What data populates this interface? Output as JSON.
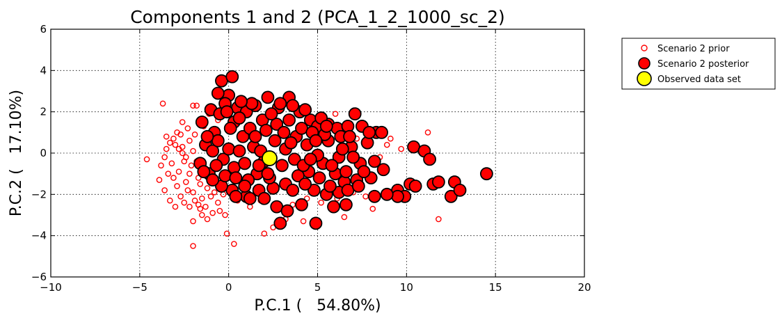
{
  "chart_data": {
    "type": "scatter",
    "title": "Components 1 and 2 (PCA_1_2_1000_sc_2)",
    "xlabel": "P.C.1 (   54.80%)",
    "ylabel": "P.C.2 (   17.10%)",
    "xlim": [
      -10,
      20
    ],
    "ylim": [
      -6,
      6
    ],
    "xticks": [
      -10,
      -5,
      0,
      5,
      10,
      15,
      20
    ],
    "yticks": [
      -6,
      -4,
      -2,
      0,
      2,
      4,
      6
    ],
    "xtick_labels": [
      "−10",
      "−5",
      "0",
      "5",
      "10",
      "15",
      "20"
    ],
    "ytick_labels": [
      "−6",
      "−4",
      "−2",
      "0",
      "2",
      "4",
      "6"
    ],
    "grid": true,
    "legend_position": "outside-top-right",
    "series": [
      {
        "name": "Scenario 2 prior",
        "marker": "hollow-circle",
        "color": "#ff0000",
        "points": [
          [
            -3.7,
            2.4
          ],
          [
            -2.0,
            2.3
          ],
          [
            -1.8,
            2.3
          ],
          [
            -2.6,
            1.5
          ],
          [
            -2.9,
            1.0
          ],
          [
            -3.5,
            0.8
          ],
          [
            -2.3,
            1.2
          ],
          [
            -4.6,
            -0.3
          ],
          [
            -3.9,
            -1.3
          ],
          [
            -3.6,
            -1.8
          ],
          [
            -3.3,
            -2.3
          ],
          [
            -3.0,
            -2.6
          ],
          [
            -2.5,
            -2.4
          ],
          [
            -1.6,
            -2.7
          ],
          [
            -1.3,
            -2.6
          ],
          [
            -1.5,
            -3.0
          ],
          [
            -0.9,
            -2.9
          ],
          [
            -0.5,
            -2.8
          ],
          [
            -0.2,
            -3.0
          ],
          [
            -1.2,
            -3.2
          ],
          [
            -2.0,
            -3.3
          ],
          [
            -2.0,
            -4.5
          ],
          [
            -0.1,
            -3.9
          ],
          [
            0.3,
            -4.4
          ],
          [
            2.0,
            -3.9
          ],
          [
            2.5,
            -3.6
          ],
          [
            3.2,
            -3.2
          ],
          [
            4.2,
            -3.3
          ],
          [
            6.5,
            -3.1
          ],
          [
            8.1,
            -2.7
          ],
          [
            6.0,
            1.9
          ],
          [
            11.2,
            1.0
          ],
          [
            9.1,
            0.7
          ],
          [
            9.7,
            0.2
          ],
          [
            11.8,
            -3.2
          ],
          [
            8.3,
            0.9
          ],
          [
            7.7,
            -2.1
          ],
          [
            -3.5,
            0.2
          ],
          [
            -3.2,
            -0.5
          ],
          [
            -3.0,
            0.4
          ],
          [
            -2.8,
            -0.9
          ],
          [
            -2.6,
            0.0
          ],
          [
            -2.4,
            -1.4
          ],
          [
            -2.2,
            0.6
          ],
          [
            -2.1,
            -0.6
          ],
          [
            -2.0,
            -1.9
          ],
          [
            -1.9,
            0.9
          ],
          [
            -1.7,
            -1.2
          ],
          [
            -1.5,
            -2.2
          ],
          [
            -1.4,
            0.3
          ],
          [
            -1.2,
            -1.7
          ],
          [
            -1.0,
            -2.1
          ],
          [
            -0.8,
            -1.9
          ],
          [
            -0.6,
            -2.4
          ],
          [
            -0.3,
            -2.0
          ],
          [
            -3.4,
            -1.0
          ],
          [
            -3.1,
            0.7
          ],
          [
            -2.9,
            -1.6
          ],
          [
            -2.7,
            0.9
          ],
          [
            -2.5,
            -0.4
          ],
          [
            -2.3,
            -1.8
          ],
          [
            -2.6,
            0.3
          ],
          [
            -2.4,
            -0.2
          ],
          [
            -2.2,
            -1.0
          ],
          [
            -2.0,
            0.1
          ],
          [
            -1.8,
            -0.4
          ],
          [
            -1.6,
            -1.5
          ],
          [
            -3.8,
            -0.6
          ],
          [
            -3.6,
            -0.2
          ],
          [
            -3.3,
            0.5
          ],
          [
            -3.1,
            -1.2
          ],
          [
            -2.8,
            0.2
          ],
          [
            -2.7,
            -2.1
          ],
          [
            -2.2,
            -2.6
          ],
          [
            -1.9,
            -2.3
          ],
          [
            -1.7,
            -2.5
          ],
          [
            0.5,
            -2.3
          ],
          [
            1.2,
            -2.6
          ],
          [
            1.8,
            -2.3
          ],
          [
            3.6,
            -2.5
          ],
          [
            4.4,
            -2.2
          ],
          [
            5.2,
            -2.4
          ],
          [
            6.1,
            -2.2
          ],
          [
            7.0,
            -1.9
          ],
          [
            7.2,
            0.7
          ],
          [
            8.5,
            -0.2
          ],
          [
            8.9,
            0.4
          ],
          [
            -0.6,
            1.6
          ],
          [
            -1.1,
            1.9
          ],
          [
            -0.8,
            2.1
          ],
          [
            -1.4,
            1.3
          ]
        ]
      },
      {
        "name": "Scenario 2 posterior",
        "marker": "filled-circle",
        "color": "#ff0000",
        "edgecolor": "#000000",
        "points": [
          [
            -0.4,
            3.5
          ],
          [
            0.2,
            3.7
          ],
          [
            0.0,
            2.8
          ],
          [
            -0.6,
            2.9
          ],
          [
            -0.2,
            2.4
          ],
          [
            0.5,
            2.2
          ],
          [
            1.0,
            2.0
          ],
          [
            1.5,
            2.3
          ],
          [
            2.2,
            2.7
          ],
          [
            3.4,
            2.7
          ],
          [
            2.8,
            2.2
          ],
          [
            4.0,
            2.0
          ],
          [
            4.6,
            1.6
          ],
          [
            5.0,
            1.3
          ],
          [
            5.6,
            1.4
          ],
          [
            6.1,
            1.2
          ],
          [
            6.7,
            1.3
          ],
          [
            7.1,
            1.9
          ],
          [
            7.5,
            1.3
          ],
          [
            8.3,
            1.0
          ],
          [
            7.8,
            0.5
          ],
          [
            6.9,
            0.3
          ],
          [
            7.4,
            -0.5
          ],
          [
            8.2,
            -0.4
          ],
          [
            8.7,
            -0.8
          ],
          [
            8.0,
            -1.2
          ],
          [
            7.2,
            -1.3
          ],
          [
            6.5,
            -1.4
          ],
          [
            6.0,
            -1.0
          ],
          [
            5.3,
            -0.5
          ],
          [
            4.5,
            -0.9
          ],
          [
            3.9,
            -1.1
          ],
          [
            3.2,
            -1.5
          ],
          [
            2.5,
            -1.7
          ],
          [
            1.7,
            -1.8
          ],
          [
            1.0,
            -2.1
          ],
          [
            0.2,
            -1.8
          ],
          [
            -0.4,
            -1.6
          ],
          [
            -1.1,
            -1.0
          ],
          [
            -1.6,
            -0.5
          ],
          [
            -1.3,
            0.4
          ],
          [
            -0.8,
            1.0
          ],
          [
            -1.5,
            1.5
          ],
          [
            -1.0,
            2.1
          ],
          [
            0.3,
            1.5
          ],
          [
            0.8,
            0.8
          ],
          [
            1.4,
            0.3
          ],
          [
            2.0,
            -0.4
          ],
          [
            2.6,
            0.6
          ],
          [
            3.2,
            0.2
          ],
          [
            3.8,
            0.8
          ],
          [
            4.4,
            0.4
          ],
          [
            5.0,
            -0.1
          ],
          [
            5.6,
            0.6
          ],
          [
            6.2,
            -0.2
          ],
          [
            4.8,
            -1.8
          ],
          [
            5.5,
            -2.0
          ],
          [
            6.2,
            -1.9
          ],
          [
            6.7,
            -1.8
          ],
          [
            7.3,
            -1.6
          ],
          [
            8.2,
            -2.1
          ],
          [
            9.5,
            -1.8
          ],
          [
            9.9,
            -2.1
          ],
          [
            10.2,
            -1.5
          ],
          [
            10.5,
            -1.6
          ],
          [
            11.5,
            -1.5
          ],
          [
            9.5,
            -2.1
          ],
          [
            8.9,
            -2.0
          ],
          [
            10.4,
            0.3
          ],
          [
            11.0,
            0.1
          ],
          [
            11.3,
            -0.3
          ],
          [
            11.8,
            -1.4
          ],
          [
            12.5,
            -2.1
          ],
          [
            12.7,
            -1.4
          ],
          [
            13.0,
            -1.8
          ],
          [
            14.5,
            -1.0
          ],
          [
            7.9,
            1.0
          ],
          [
            8.6,
            1.0
          ],
          [
            2.0,
            -2.2
          ],
          [
            2.7,
            -2.6
          ],
          [
            2.9,
            -3.4
          ],
          [
            3.3,
            -2.8
          ],
          [
            4.1,
            -2.5
          ],
          [
            4.9,
            -3.4
          ],
          [
            5.9,
            -2.6
          ],
          [
            6.6,
            -2.5
          ],
          [
            0.4,
            -2.1
          ],
          [
            1.2,
            -2.2
          ],
          [
            -0.9,
            0.1
          ],
          [
            -0.6,
            0.6
          ],
          [
            -0.3,
            -0.3
          ],
          [
            0.0,
            0.2
          ],
          [
            0.3,
            -0.7
          ],
          [
            0.6,
            0.1
          ],
          [
            0.9,
            -0.5
          ],
          [
            1.2,
            1.2
          ],
          [
            1.6,
            -1.0
          ],
          [
            1.9,
            1.6
          ],
          [
            2.3,
            -1.2
          ],
          [
            2.7,
            1.4
          ],
          [
            3.0,
            -0.6
          ],
          [
            3.4,
            1.6
          ],
          [
            3.7,
            -0.3
          ],
          [
            4.1,
            1.2
          ],
          [
            4.3,
            -1.5
          ],
          [
            4.7,
            1.0
          ],
          [
            5.1,
            -1.2
          ],
          [
            5.4,
            0.9
          ],
          [
            5.8,
            -0.6
          ],
          [
            6.3,
            0.8
          ],
          [
            6.6,
            -0.9
          ],
          [
            7.0,
            -0.2
          ],
          [
            -1.4,
            -0.9
          ],
          [
            -0.9,
            -1.3
          ],
          [
            -0.5,
            1.9
          ],
          [
            0.1,
            1.2
          ],
          [
            0.6,
            1.7
          ],
          [
            1.1,
            -1.3
          ],
          [
            1.5,
            0.8
          ],
          [
            2.4,
            1.9
          ],
          [
            3.1,
            1.0
          ],
          [
            3.6,
            -1.8
          ],
          [
            4.2,
            -0.6
          ],
          [
            4.9,
            0.6
          ],
          [
            5.7,
            -1.6
          ],
          [
            6.4,
            0.2
          ],
          [
            -0.2,
            -1.1
          ],
          [
            0.9,
            -1.6
          ],
          [
            1.8,
            0.1
          ],
          [
            2.1,
            1.1
          ],
          [
            3.5,
            0.5
          ],
          [
            4.6,
            -0.3
          ],
          [
            5.2,
            1.7
          ],
          [
            2.9,
            2.4
          ],
          [
            1.3,
            2.4
          ],
          [
            0.7,
            2.5
          ],
          [
            -0.1,
            2.0
          ],
          [
            -1.2,
            0.8
          ],
          [
            -0.7,
            -0.6
          ],
          [
            0.4,
            -1.2
          ],
          [
            1.7,
            -0.6
          ],
          [
            2.2,
            -1.0
          ],
          [
            3.6,
            2.3
          ],
          [
            4.3,
            2.1
          ],
          [
            5.5,
            1.3
          ],
          [
            6.8,
            0.8
          ],
          [
            7.6,
            -0.9
          ]
        ]
      },
      {
        "name": "Observed data set",
        "marker": "filled-circle",
        "color": "#ffff00",
        "edgecolor": "#000000",
        "points": [
          [
            2.3,
            -0.25
          ]
        ]
      }
    ]
  }
}
